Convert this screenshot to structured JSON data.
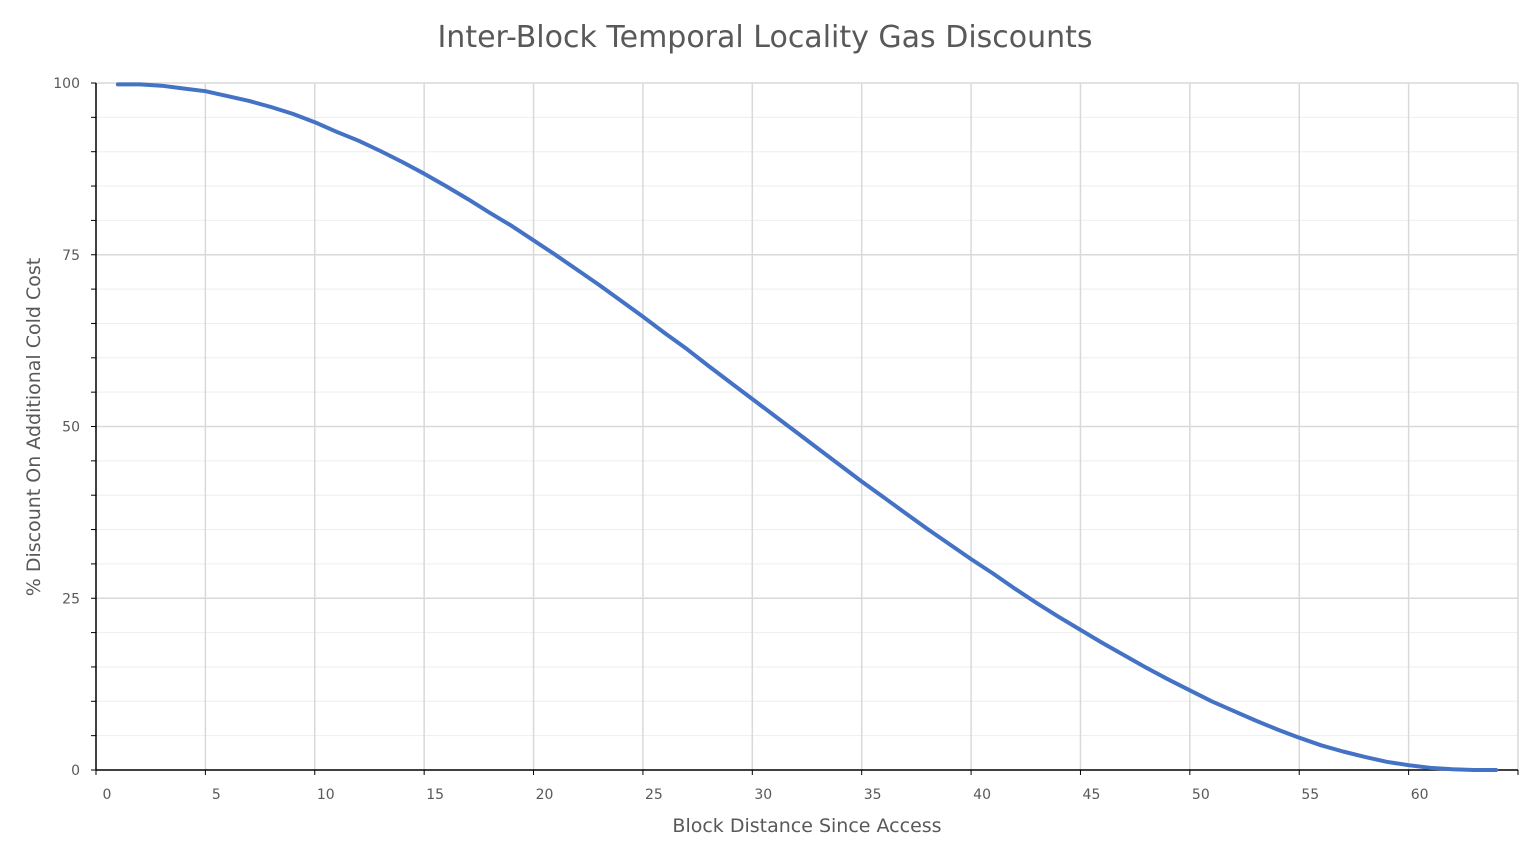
{
  "colors": {
    "series": "#4472C4",
    "major_grid": "#d9d9d9",
    "minor_grid": "#eeeeee",
    "axis": "#000000",
    "text": "#595959"
  },
  "chart_data": {
    "type": "line",
    "title": "Inter-Block Temporal Locality Gas Discounts",
    "xlabel": "Block Distance Since Access",
    "ylabel": "% Discount On Additional Cold Cost",
    "xlim": [
      0,
      65
    ],
    "ylim": [
      0,
      100
    ],
    "x_ticks": [
      0,
      5,
      10,
      15,
      20,
      25,
      30,
      35,
      40,
      45,
      50,
      55,
      60
    ],
    "y_ticks": [
      0,
      25,
      50,
      75,
      100
    ],
    "y_minor_step": 5,
    "grid": true,
    "legend": "none",
    "series": [
      {
        "x": [
          1,
          2,
          3,
          4,
          5,
          6,
          7,
          8,
          9,
          10,
          11,
          12,
          13,
          14,
          15,
          16,
          17,
          18,
          19,
          20,
          21,
          22,
          23,
          24,
          25,
          26,
          27,
          28,
          29,
          30,
          31,
          32,
          33,
          34,
          35,
          36,
          37,
          38,
          39,
          40,
          41,
          42,
          43,
          44,
          45,
          46,
          47,
          48,
          49,
          50,
          51,
          52,
          53,
          54,
          55,
          56,
          57,
          58,
          59,
          60,
          61,
          62,
          63,
          64
        ],
        "y": [
          99.8,
          99.8,
          99.6,
          99.2,
          98.8,
          98.1,
          97.4,
          96.5,
          95.5,
          94.3,
          92.9,
          91.6,
          90.1,
          88.5,
          86.8,
          85.0,
          83.1,
          81.1,
          79.2,
          77.1,
          75.0,
          72.8,
          70.6,
          68.3,
          66.0,
          63.6,
          61.3,
          58.8,
          56.4,
          54.0,
          51.6,
          49.2,
          46.8,
          44.4,
          42.0,
          39.7,
          37.4,
          35.1,
          32.9,
          30.7,
          28.6,
          26.4,
          24.3,
          22.3,
          20.4,
          18.5,
          16.7,
          14.9,
          13.2,
          11.6,
          10.0,
          8.6,
          7.2,
          5.9,
          4.7,
          3.6,
          2.7,
          1.9,
          1.2,
          0.7,
          0.3,
          0.1,
          0.0,
          0.0
        ]
      }
    ]
  }
}
